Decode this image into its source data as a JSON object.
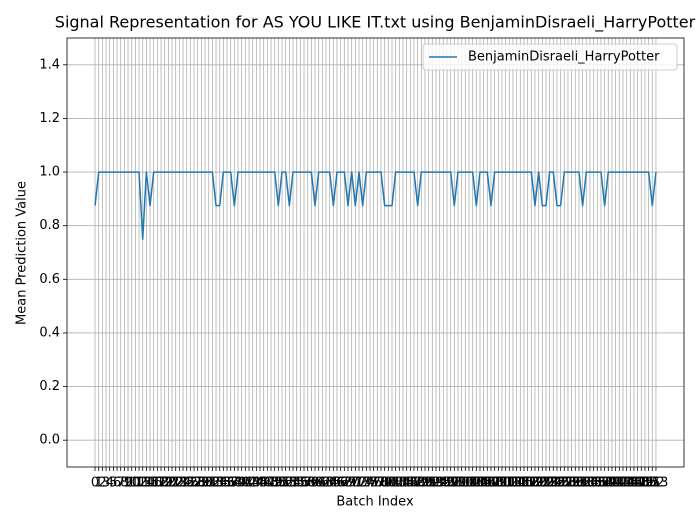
{
  "chart_data": {
    "type": "line",
    "title": "Signal Representation for AS YOU LIKE IT.txt using BenjaminDisraeli_HarryPotter",
    "xlabel": "Batch Index",
    "ylabel": "Mean Prediction Value",
    "x": [
      0,
      1,
      2,
      3,
      4,
      5,
      6,
      7,
      8,
      9,
      10,
      11,
      12,
      13,
      14,
      15,
      16,
      17,
      18,
      19,
      20,
      21,
      22,
      23,
      24,
      25,
      26,
      27,
      28,
      29,
      30,
      31,
      32,
      33,
      34,
      35,
      36,
      37,
      38,
      39,
      40,
      41,
      42,
      43,
      44,
      45,
      46,
      47,
      48,
      49,
      50,
      51,
      52,
      53,
      54,
      55,
      56,
      57,
      58,
      59,
      60,
      61,
      62,
      63,
      64,
      65,
      66,
      67,
      68,
      69,
      70,
      71,
      72,
      73,
      74,
      75,
      76,
      77,
      78,
      79,
      80,
      81,
      82,
      83,
      84,
      85,
      86,
      87,
      88,
      89,
      90,
      91,
      92,
      93,
      94,
      95,
      96,
      97,
      98,
      99,
      100,
      101,
      102,
      103,
      104,
      105,
      106,
      107,
      108,
      109,
      110,
      111,
      112,
      113,
      114,
      115,
      116,
      117,
      118,
      119,
      120,
      121,
      122,
      123,
      124,
      125,
      126,
      127,
      128,
      129,
      130,
      131,
      132,
      133,
      134,
      135,
      136,
      137,
      138,
      139,
      140,
      141,
      142,
      143,
      144,
      145,
      146,
      147,
      148,
      149,
      150,
      151,
      152,
      153
    ],
    "series": [
      {
        "name": "BenjaminDisraeli_HarryPotter",
        "color": "#1f77b4",
        "values": [
          0.875,
          1,
          1,
          1,
          1,
          1,
          1,
          1,
          1,
          1,
          1,
          1,
          1,
          0.75,
          1,
          0.875,
          1,
          1,
          1,
          1,
          1,
          1,
          1,
          1,
          1,
          1,
          1,
          1,
          1,
          1,
          1,
          1,
          1,
          0.875,
          0.875,
          1,
          1,
          1,
          0.875,
          1,
          1,
          1,
          1,
          1,
          1,
          1,
          1,
          1,
          1,
          1,
          0.875,
          1,
          1,
          0.875,
          1,
          1,
          1,
          1,
          1,
          1,
          0.875,
          1,
          1,
          1,
          1,
          0.875,
          1,
          1,
          1,
          0.875,
          1,
          0.875,
          1,
          0.875,
          1,
          1,
          1,
          1,
          1,
          0.875,
          0.875,
          0.875,
          1,
          1,
          1,
          1,
          1,
          1,
          0.875,
          1,
          1,
          1,
          1,
          1,
          1,
          1,
          1,
          1,
          0.875,
          1,
          1,
          1,
          1,
          1,
          0.875,
          1,
          1,
          1,
          0.875,
          1,
          1,
          1,
          1,
          1,
          1,
          1,
          1,
          1,
          1,
          1,
          0.875,
          1,
          0.875,
          0.875,
          1,
          1,
          0.875,
          0.875,
          1,
          1,
          1,
          1,
          1,
          0.875,
          1,
          1,
          1,
          1,
          1,
          0.875,
          1,
          1,
          1,
          1,
          1,
          1,
          1,
          1,
          1,
          1,
          1,
          1,
          0.875,
          1
        ]
      }
    ],
    "xlim": [
      -7.65,
      160.65
    ],
    "xticks": [
      0,
      1,
      2,
      3,
      4,
      5,
      6,
      7,
      8,
      9,
      10,
      11,
      12,
      13,
      14,
      15,
      16,
      17,
      18,
      19,
      20,
      21,
      22,
      23,
      24,
      25,
      26,
      27,
      28,
      29,
      30,
      31,
      32,
      33,
      34,
      35,
      36,
      37,
      38,
      39,
      40,
      41,
      42,
      43,
      44,
      45,
      46,
      47,
      48,
      49,
      50,
      51,
      52,
      53,
      54,
      55,
      56,
      57,
      58,
      59,
      60,
      61,
      62,
      63,
      64,
      65,
      66,
      67,
      68,
      69,
      70,
      71,
      72,
      73,
      74,
      75,
      76,
      77,
      78,
      79,
      80,
      81,
      82,
      83,
      84,
      85,
      86,
      87,
      88,
      89,
      90,
      91,
      92,
      93,
      94,
      95,
      96,
      97,
      98,
      99,
      100,
      101,
      102,
      103,
      104,
      105,
      106,
      107,
      108,
      109,
      110,
      111,
      112,
      113,
      114,
      115,
      116,
      117,
      118,
      119,
      120,
      121,
      122,
      123,
      124,
      125,
      126,
      127,
      128,
      129,
      130,
      131,
      132,
      133,
      134,
      135,
      136,
      137,
      138,
      139,
      140,
      141,
      142,
      143,
      144,
      145,
      146,
      147,
      148,
      149,
      150,
      151,
      152,
      153
    ],
    "ylim": [
      -0.1,
      1.5
    ],
    "yticks": [
      {
        "value": 0,
        "label": "0.0"
      },
      0.2,
      0.4,
      0.6,
      0.8,
      {
        "value": 1,
        "label": "1.0"
      },
      1.2,
      1.4
    ],
    "grid": true,
    "legend": "upper right"
  }
}
